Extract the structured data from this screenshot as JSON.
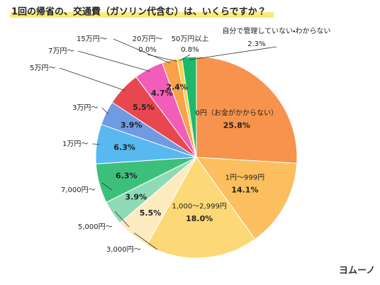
{
  "chart_data": {
    "type": "pie",
    "title": "1回の帰省の、交通費（ガソリン代含む）は、いくらですか？",
    "categories": [
      "0円（お金がかからない）",
      "1円〜999円",
      "1,000〜2,999円",
      "3,000円〜",
      "5,000円〜",
      "7,000円〜",
      "1万円〜",
      "3万円〜",
      "5万円〜",
      "7万円〜",
      "15万円〜",
      "20万円〜",
      "50万円以上",
      "自分で管理していない・わからない"
    ],
    "values": [
      25.8,
      14.1,
      18.0,
      5.5,
      3.9,
      6.3,
      6.3,
      3.9,
      5.5,
      4.7,
      2.4,
      0.0,
      0.8,
      2.3
    ],
    "value_labels": [
      "25.8%",
      "14.1%",
      "18.0%",
      "5.5%",
      "3.9%",
      "6.3%",
      "6.3%",
      "3.9%",
      "5.5%",
      "4.7%",
      "2.4%",
      "0.0%",
      "0.8%",
      "2.3%"
    ],
    "colors": [
      "#f7934c",
      "#fbbf5f",
      "#fcd877",
      "#fdebc0",
      "#8edbb5",
      "#3dbf7c",
      "#57b9f0",
      "#6f9be3",
      "#e8474f",
      "#f15db9",
      "#f9a24b",
      "#f7c948",
      "#f7d34a",
      "#1db96b"
    ],
    "logo": "ヨムーノ"
  }
}
